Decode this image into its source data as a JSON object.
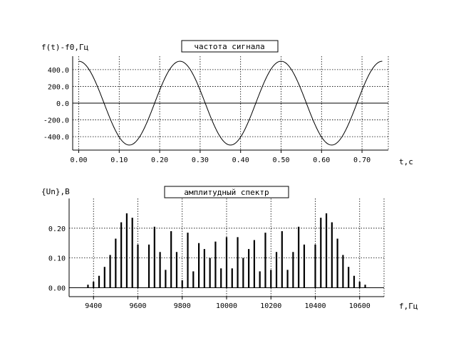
{
  "chart_data": [
    {
      "type": "line",
      "title": "частота сигнала",
      "ylabel": "f(t)-f0,Гц",
      "xlabel": "t,c",
      "xlim": [
        -0.015,
        0.765
      ],
      "ylim": [
        -560,
        560
      ],
      "grid": true,
      "xticks": [
        "0.00",
        "0.10",
        "0.20",
        "0.30",
        "0.40",
        "0.50",
        "0.60",
        "0.70"
      ],
      "yticks": [
        "400.0",
        "200.0",
        "0.0",
        "-200.0",
        "-400.0"
      ],
      "signal": {
        "amplitude": 500,
        "period": 0.25,
        "t_start": 0.0,
        "t_end": 0.75
      }
    },
    {
      "type": "bar",
      "title": "амплитудный спектр",
      "ylabel": "{Un},B",
      "xlabel": "f,Гц",
      "xlim": [
        9290,
        10710
      ],
      "ylim": [
        -0.03,
        0.3
      ],
      "grid": true,
      "xticks": [
        "9400",
        "9600",
        "9800",
        "10000",
        "10200",
        "10400",
        "10600"
      ],
      "yticks": [
        "0.20",
        "0.10",
        "0.00"
      ],
      "x": [
        9375,
        9400,
        9425,
        9450,
        9475,
        9500,
        9525,
        9550,
        9575,
        9600,
        9625,
        9650,
        9675,
        9700,
        9725,
        9750,
        9775,
        9800,
        9825,
        9850,
        9875,
        9900,
        9925,
        9950,
        9975,
        10000,
        10025,
        10050,
        10075,
        10100,
        10125,
        10150,
        10175,
        10200,
        10225,
        10250,
        10275,
        10300,
        10325,
        10350,
        10375,
        10400,
        10425,
        10450,
        10475,
        10500,
        10525,
        10550,
        10575,
        10600,
        10625
      ],
      "values": [
        0.01,
        0.02,
        0.04,
        0.07,
        0.11,
        0.165,
        0.22,
        0.25,
        0.235,
        0.145,
        0.0,
        0.145,
        0.205,
        0.12,
        0.06,
        0.19,
        0.12,
        0.025,
        0.185,
        0.055,
        0.15,
        0.13,
        0.1,
        0.155,
        0.065,
        0.17,
        0.065,
        0.17,
        0.1,
        0.13,
        0.16,
        0.055,
        0.185,
        0.06,
        0.12,
        0.19,
        0.06,
        0.12,
        0.205,
        0.145,
        0.0,
        0.145,
        0.235,
        0.25,
        0.22,
        0.165,
        0.11,
        0.07,
        0.04,
        0.02,
        0.01
      ]
    }
  ]
}
